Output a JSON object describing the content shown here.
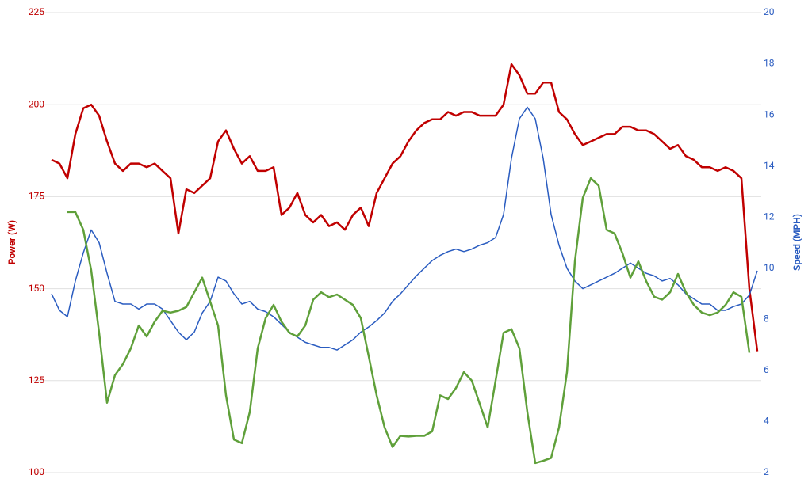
{
  "chart_data": {
    "type": "line",
    "ylabel": "Power (W)",
    "y2label": "Speed (MPH)",
    "ylim": [
      100,
      225
    ],
    "yticks": [
      100,
      125,
      150,
      175,
      200,
      225
    ],
    "y2lim": [
      2,
      20
    ],
    "y2ticks": [
      2,
      4,
      6,
      8,
      10,
      12,
      14,
      16,
      18,
      20
    ],
    "ycolor": "#c00000",
    "y2color": "#2a5cc0",
    "grid": true,
    "series": [
      {
        "color": "#c00000",
        "width": 2.5,
        "values": [
          185,
          184,
          180,
          192,
          199,
          200,
          197,
          190,
          184,
          182,
          184,
          184,
          183,
          184,
          182,
          180,
          165,
          177,
          176,
          178,
          180,
          190,
          193,
          188,
          184,
          186,
          182,
          182,
          183,
          170,
          172,
          176,
          170,
          168,
          170,
          167,
          168,
          166,
          170,
          172,
          167,
          176,
          180,
          184,
          186,
          190,
          193,
          195,
          196,
          196,
          198,
          197,
          198,
          198,
          197,
          197,
          197,
          200,
          211,
          208,
          203,
          203,
          206,
          206,
          198,
          196,
          192,
          189,
          190,
          191,
          192,
          192,
          194,
          194,
          193,
          193,
          192,
          190,
          188,
          189,
          186,
          185,
          183,
          183,
          182,
          183,
          182,
          180,
          150,
          133
        ]
      },
      {
        "color": "#2a5cc0",
        "width": 1.5,
        "axis": "y2",
        "values": [
          9.0,
          8.35,
          8.1,
          9.5,
          10.6,
          11.5,
          11.0,
          9.8,
          8.7,
          8.6,
          8.6,
          8.4,
          8.6,
          8.6,
          8.4,
          7.95,
          7.5,
          7.2,
          7.5,
          8.25,
          8.7,
          9.65,
          9.5,
          9.0,
          8.6,
          8.7,
          8.4,
          8.3,
          8.1,
          7.8,
          7.5,
          7.3,
          7.1,
          7.0,
          6.9,
          6.9,
          6.8,
          7.0,
          7.2,
          7.5,
          7.7,
          7.95,
          8.25,
          8.7,
          9.0,
          9.35,
          9.7,
          10.0,
          10.3,
          10.5,
          10.65,
          10.75,
          10.65,
          10.75,
          10.9,
          11.0,
          11.2,
          12.1,
          14.3,
          15.85,
          16.3,
          15.85,
          14.3,
          12.1,
          10.9,
          10.0,
          9.5,
          9.2,
          9.35,
          9.5,
          9.65,
          9.8,
          10.0,
          10.2,
          10.0,
          9.8,
          9.7,
          9.5,
          9.6,
          9.35,
          9.0,
          8.8,
          8.6,
          8.6,
          8.35,
          8.35,
          8.5,
          8.6,
          8.95,
          9.9
        ]
      },
      {
        "color": "#5fa03a",
        "width": 2.5,
        "values": [
          null,
          null,
          170.8,
          170.8,
          166,
          155,
          138,
          119,
          126.5,
          129.5,
          133.8,
          140,
          137,
          141,
          144,
          143.5,
          144,
          145,
          149,
          153,
          146.5,
          140,
          121,
          109,
          108,
          116.5,
          133.8,
          142,
          145.6,
          141,
          138,
          137,
          140,
          147,
          149,
          147.7,
          148.4,
          147,
          145.6,
          142,
          131.6,
          121,
          112.3,
          107,
          110,
          109.8,
          110,
          110,
          111.2,
          121,
          120,
          123,
          127.3,
          125,
          118.7,
          112.3,
          125,
          138,
          139,
          133.8,
          116.5,
          102.6,
          103.2,
          104,
          112.3,
          127.3,
          157.4,
          174.7,
          180,
          178,
          166,
          165,
          159.6,
          153,
          157.4,
          152,
          147.8,
          147,
          149,
          154,
          149,
          145.6,
          143.5,
          142.8,
          143.5,
          145.6,
          149,
          147.8,
          132.6,
          null
        ]
      }
    ]
  }
}
